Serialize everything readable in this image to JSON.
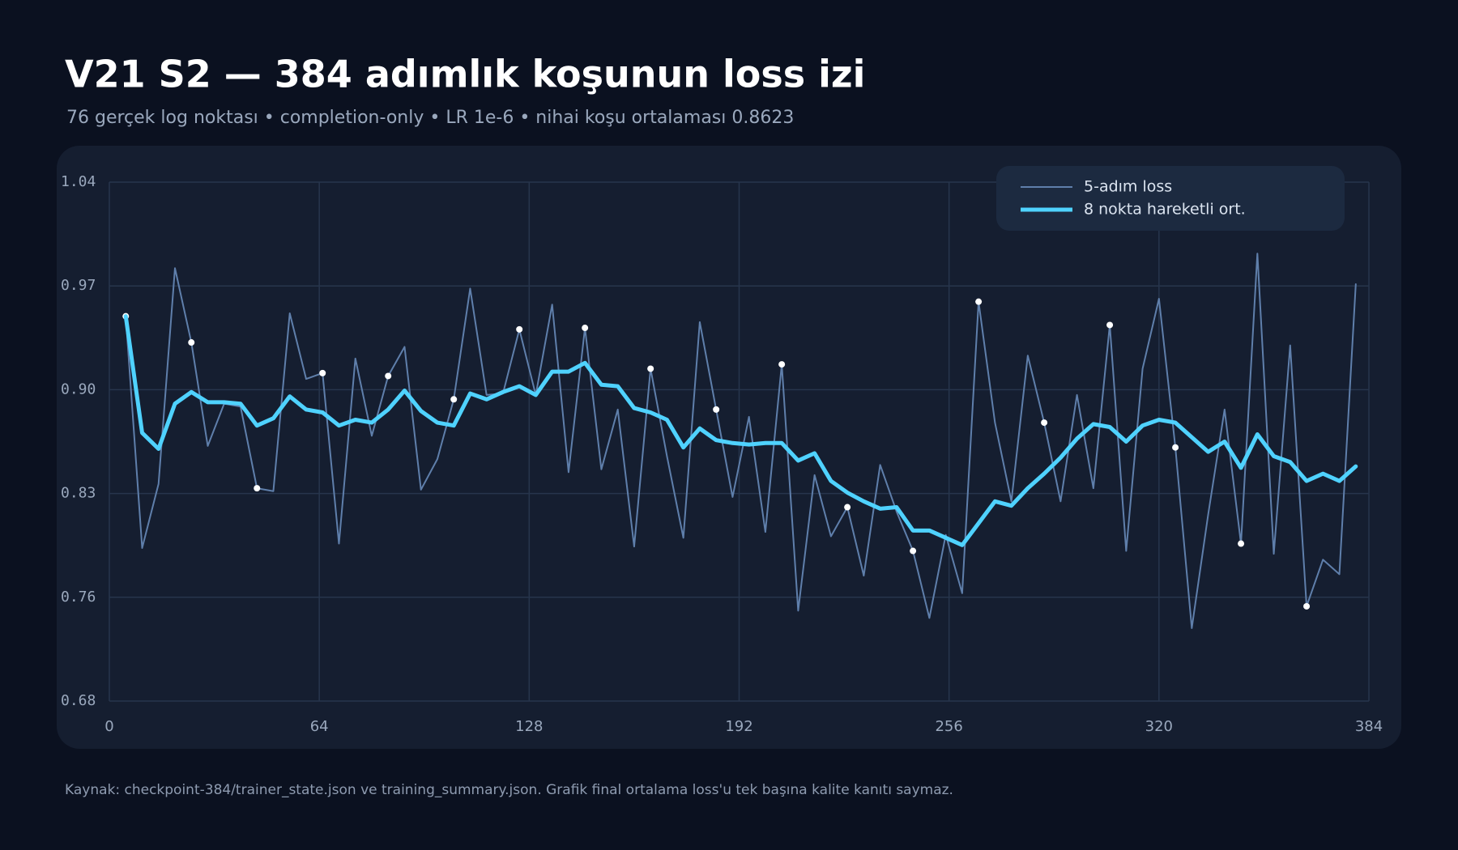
{
  "chart_data": {
    "type": "line",
    "title": "V21 S2 — 384 adımlık koşunun loss izi",
    "subtitle": "76 gerçek log noktası • completion-only • LR 1e-6 • nihai koşu ortalaması 0.8623",
    "source": "Kaynak: checkpoint-384/trainer_state.json ve training_summary.json. Grafik final ortalama loss'u tek başına kalite kanıtı saymaz.",
    "x": [
      5,
      10,
      15,
      20,
      25,
      30,
      35,
      40,
      45,
      50,
      55,
      60,
      65,
      70,
      75,
      80,
      85,
      90,
      95,
      100,
      105,
      110,
      115,
      120,
      125,
      130,
      135,
      140,
      145,
      150,
      155,
      160,
      165,
      170,
      175,
      180,
      185,
      190,
      195,
      200,
      205,
      210,
      215,
      220,
      225,
      230,
      235,
      240,
      245,
      250,
      255,
      260,
      265,
      270,
      275,
      280,
      285,
      290,
      295,
      300,
      305,
      310,
      315,
      320,
      325,
      330,
      335,
      340,
      345,
      350,
      355,
      360,
      365,
      370,
      375,
      380
    ],
    "series": [
      {
        "name": "5-adım loss",
        "color": "#5f7fab",
        "line_width": 2,
        "marker_every": 4,
        "values": [
          0.948,
          0.789,
          0.833,
          0.981,
          0.93,
          0.859,
          0.888,
          0.886,
          0.83,
          0.828,
          0.95,
          0.905,
          0.909,
          0.792,
          0.919,
          0.866,
          0.907,
          0.927,
          0.829,
          0.85,
          0.891,
          0.967,
          0.894,
          0.895,
          0.939,
          0.894,
          0.956,
          0.841,
          0.94,
          0.843,
          0.884,
          0.79,
          0.912,
          0.852,
          0.796,
          0.944,
          0.884,
          0.824,
          0.879,
          0.8,
          0.915,
          0.746,
          0.839,
          0.797,
          0.817,
          0.77,
          0.846,
          0.814,
          0.787,
          0.741,
          0.798,
          0.758,
          0.958,
          0.875,
          0.821,
          0.921,
          0.875,
          0.821,
          0.894,
          0.83,
          0.942,
          0.787,
          0.912,
          0.96,
          0.858,
          0.734,
          0.812,
          0.884,
          0.792,
          0.991,
          0.785,
          0.928,
          0.749,
          0.781,
          0.771,
          0.97
        ]
      },
      {
        "name": "8 nokta hareketli ort.",
        "color": "#4fd2ff",
        "line_width": 5,
        "values": [
          0.948,
          0.868,
          0.857,
          0.888,
          0.896,
          0.889,
          0.889,
          0.888,
          0.873,
          0.878,
          0.893,
          0.884,
          0.882,
          0.873,
          0.877,
          0.875,
          0.884,
          0.897,
          0.883,
          0.875,
          0.873,
          0.895,
          0.891,
          0.896,
          0.9,
          0.894,
          0.91,
          0.91,
          0.916,
          0.901,
          0.9,
          0.885,
          0.882,
          0.877,
          0.858,
          0.871,
          0.863,
          0.861,
          0.86,
          0.861,
          0.861,
          0.849,
          0.854,
          0.835,
          0.827,
          0.821,
          0.816,
          0.817,
          0.801,
          0.801,
          0.796,
          0.791,
          0.806,
          0.821,
          0.818,
          0.83,
          0.84,
          0.851,
          0.864,
          0.874,
          0.872,
          0.862,
          0.873,
          0.877,
          0.875,
          0.865,
          0.855,
          0.862,
          0.844,
          0.867,
          0.852,
          0.848,
          0.835,
          0.84,
          0.835,
          0.845
        ]
      }
    ],
    "xlim": [
      0,
      384
    ],
    "xticks": [
      0,
      64,
      128,
      192,
      256,
      320,
      384
    ],
    "ylim": [
      0.684,
      1.04
    ],
    "yticks": [
      {
        "value": 0.684,
        "label": "0.68"
      },
      {
        "value": 0.7552,
        "label": "0.76"
      },
      {
        "value": 0.8264,
        "label": "0.83"
      },
      {
        "value": 0.8976,
        "label": "0.90"
      },
      {
        "value": 0.9688,
        "label": "0.97"
      },
      {
        "value": 1.04,
        "label": "1.04"
      }
    ],
    "grid": true,
    "legend": "top-right"
  }
}
